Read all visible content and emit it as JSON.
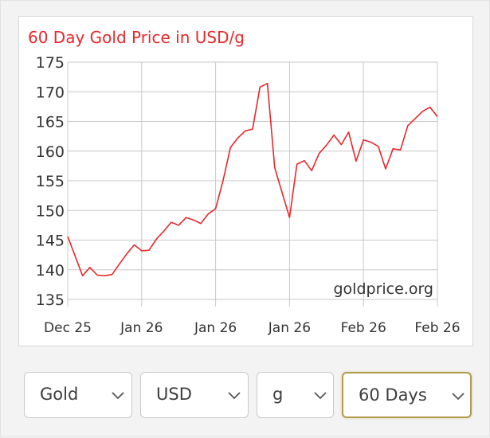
{
  "controls": {
    "metal": "Gold",
    "currency": "USD",
    "unit": "g",
    "period": "60 Days"
  },
  "colors": {
    "line": "#e8282b",
    "title": "#e8282b",
    "grid": "#c8c8c8",
    "axis_text": "#333333",
    "active_border": "#b39b4e"
  },
  "chart_data": {
    "type": "line",
    "title": "60 Day Gold Price in USD/g",
    "watermark": "goldprice.org",
    "ylim": [
      135,
      175
    ],
    "y_ticks": [
      175,
      170,
      165,
      160,
      155,
      150,
      145,
      140,
      135
    ],
    "x_ticks": [
      "Dec 25",
      "Jan 26",
      "Jan 26",
      "Jan 26",
      "Feb 26",
      "Feb 26"
    ],
    "x": [
      0,
      2,
      4,
      6,
      8,
      10,
      12,
      14,
      16,
      18,
      20,
      22,
      24,
      26,
      28,
      30,
      32,
      34,
      36,
      38,
      40,
      42,
      44,
      46,
      48,
      50,
      52,
      54,
      56,
      58,
      60,
      62,
      64,
      66,
      68,
      70,
      72,
      74,
      76,
      78,
      80,
      82,
      84,
      86,
      88,
      90,
      92,
      94,
      96,
      98,
      100
    ],
    "series": [
      {
        "values": [
          145.6,
          142.3,
          139.0,
          140.4,
          139.1,
          139.0,
          139.2,
          141.0,
          142.7,
          144.2,
          143.2,
          143.3,
          145.2,
          146.5,
          148.0,
          147.5,
          148.8,
          148.4,
          147.8,
          149.4,
          150.3,
          155.0,
          160.6,
          162.2,
          163.4,
          163.7,
          170.8,
          171.4,
          157.2,
          153.0,
          148.8,
          157.8,
          158.4,
          156.7,
          159.6,
          161.0,
          162.7,
          161.1,
          163.2,
          158.3,
          161.9,
          161.5,
          160.8,
          157.0,
          160.4,
          160.2,
          164.3,
          165.5,
          166.7,
          167.4,
          165.8
        ]
      }
    ]
  }
}
